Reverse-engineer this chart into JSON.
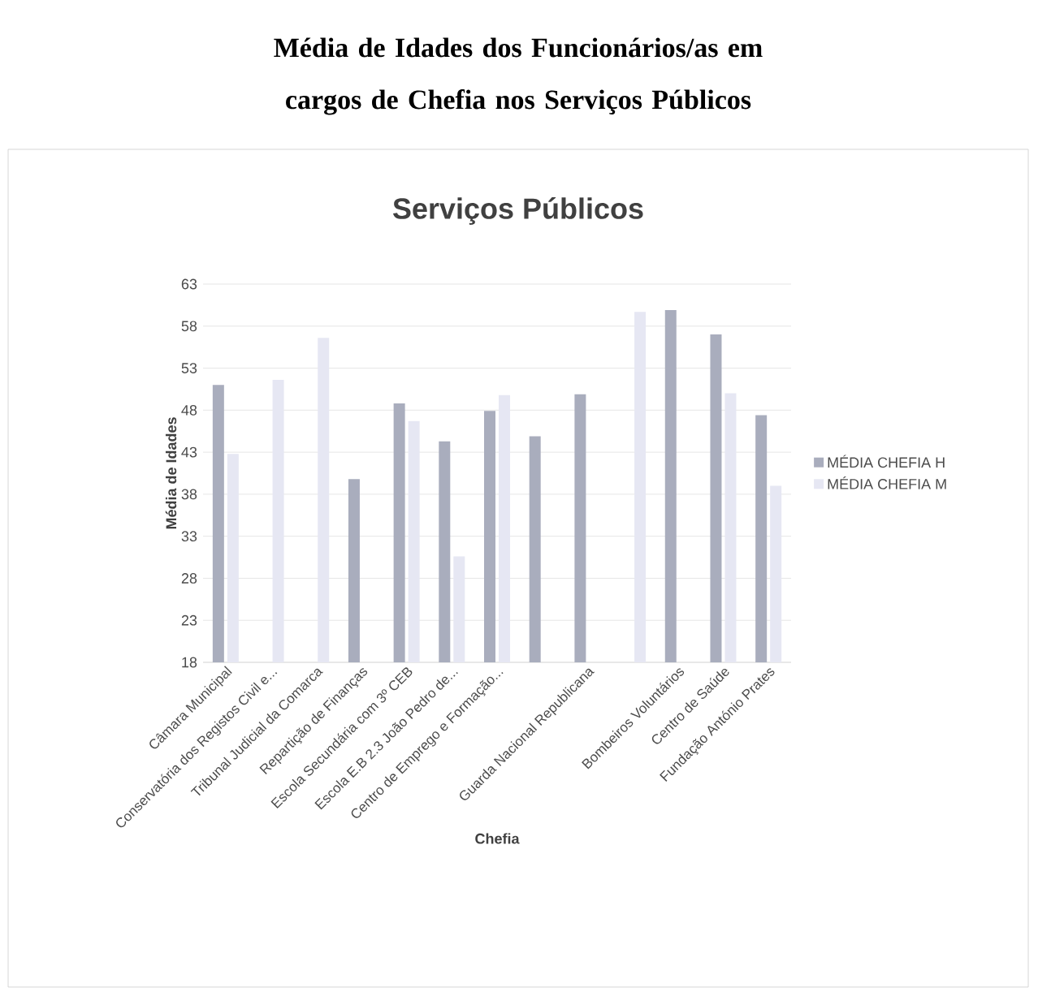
{
  "chart_data": {
    "type": "bar",
    "title": "Média de Idades dos Funcionários/as em cargos de Chefia nos Serviços Públicos",
    "subtitle": "Serviços Públicos",
    "xlabel": "Chefia",
    "ylabel": "Média de Idades",
    "categories": [
      "Câmara Municipal",
      "Conservatória dos Registos Civil e...",
      "Tribunal Judicial da Comarca",
      "Repartição de Finanças",
      "Escola Secundária com 3º CEB",
      "Escola E.B 2.3 João Pedro de...",
      "Centro de Emprego e Formação...",
      null,
      "Guarda Nacional Republicana",
      null,
      "Bombeiros Voluntários",
      "Centro de Saúde",
      "Fundação António Prates"
    ],
    "series": [
      {
        "name": "MÉDIA CHEFIA H",
        "color": "#a9adbd",
        "values": [
          51.0,
          null,
          null,
          39.8,
          48.8,
          44.3,
          47.9,
          44.9,
          49.9,
          null,
          59.9,
          57.0,
          47.4
        ]
      },
      {
        "name": "MÉDIA CHEFIA M",
        "color": "#e6e7f3",
        "values": [
          42.8,
          51.6,
          56.6,
          null,
          46.7,
          30.6,
          49.8,
          null,
          null,
          59.7,
          null,
          50.0,
          39.0
        ]
      }
    ],
    "ylim": [
      18,
      63
    ],
    "yticks": [
      18,
      23,
      28,
      33,
      38,
      43,
      48,
      53,
      58,
      63
    ],
    "grid": "y",
    "legend": "right"
  }
}
